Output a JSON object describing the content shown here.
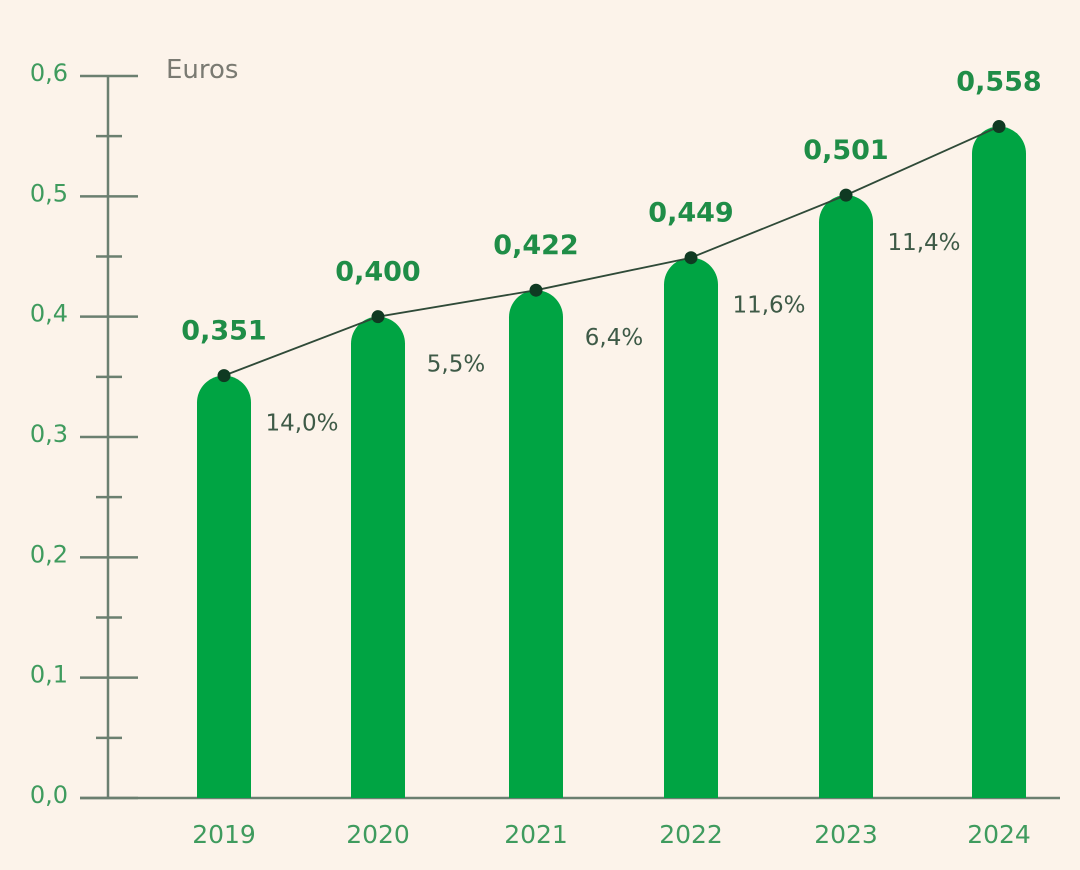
{
  "chart_data": {
    "type": "bar",
    "title": "",
    "xlabel": "",
    "ylabel": "Euros",
    "ylim": [
      0,
      0.6
    ],
    "yticks": [
      "0,0",
      "0,1",
      "0,2",
      "0,3",
      "0,4",
      "0,5",
      "0,6"
    ],
    "categories": [
      "2019",
      "2020",
      "2021",
      "2022",
      "2023",
      "2024"
    ],
    "values": [
      0.351,
      0.4,
      0.422,
      0.449,
      0.501,
      0.558
    ],
    "value_labels": [
      "0,351",
      "0,400",
      "0,422",
      "0,449",
      "0,501",
      "0,558"
    ],
    "growth_labels": [
      "14,0%",
      "5,5%",
      "6,4%",
      "11,6%",
      "11,4%"
    ],
    "overlay_line": true,
    "grid": false,
    "legend": "none",
    "colors": {
      "background": "#fcf3ea",
      "bar": "#00a443",
      "axis": "#6b7f70",
      "line": "#2f4a38",
      "marker": "#0f3a22"
    }
  }
}
